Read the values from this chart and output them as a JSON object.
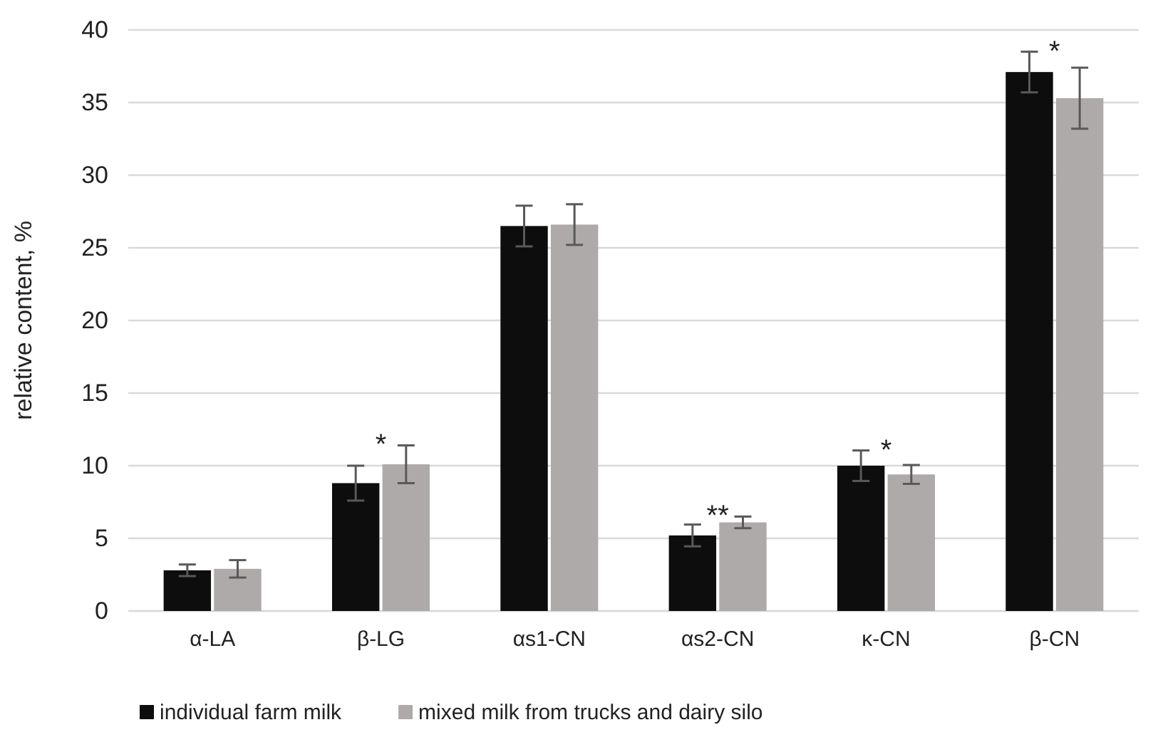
{
  "chart_data": {
    "type": "bar",
    "ylabel": "relative content, %",
    "categories": [
      "α-LA",
      "β-LG",
      "αs1-CN",
      "αs2-CN",
      "κ-CN",
      "β-CN"
    ],
    "series": [
      {
        "name": "individual farm milk",
        "color": "#0d0d0d",
        "values": [
          2.8,
          8.8,
          26.5,
          5.2,
          10,
          37.1
        ],
        "errors": [
          0.4,
          1.2,
          1.4,
          0.75,
          1.05,
          1.4
        ]
      },
      {
        "name": "mixed milk from trucks and dairy silo",
        "color": "#aeaaaa",
        "values": [
          2.9,
          10.1,
          26.6,
          6.1,
          9.4,
          35.3
        ],
        "errors": [
          0.6,
          1.3,
          1.4,
          0.4,
          0.65,
          2.1
        ]
      }
    ],
    "ylim": [
      0,
      40
    ],
    "yticks": [
      0,
      5,
      10,
      15,
      20,
      25,
      30,
      35,
      40
    ],
    "grid": "y",
    "legend": "bottom",
    "annotations": [
      "*",
      "**",
      "*",
      "*"
    ]
  }
}
